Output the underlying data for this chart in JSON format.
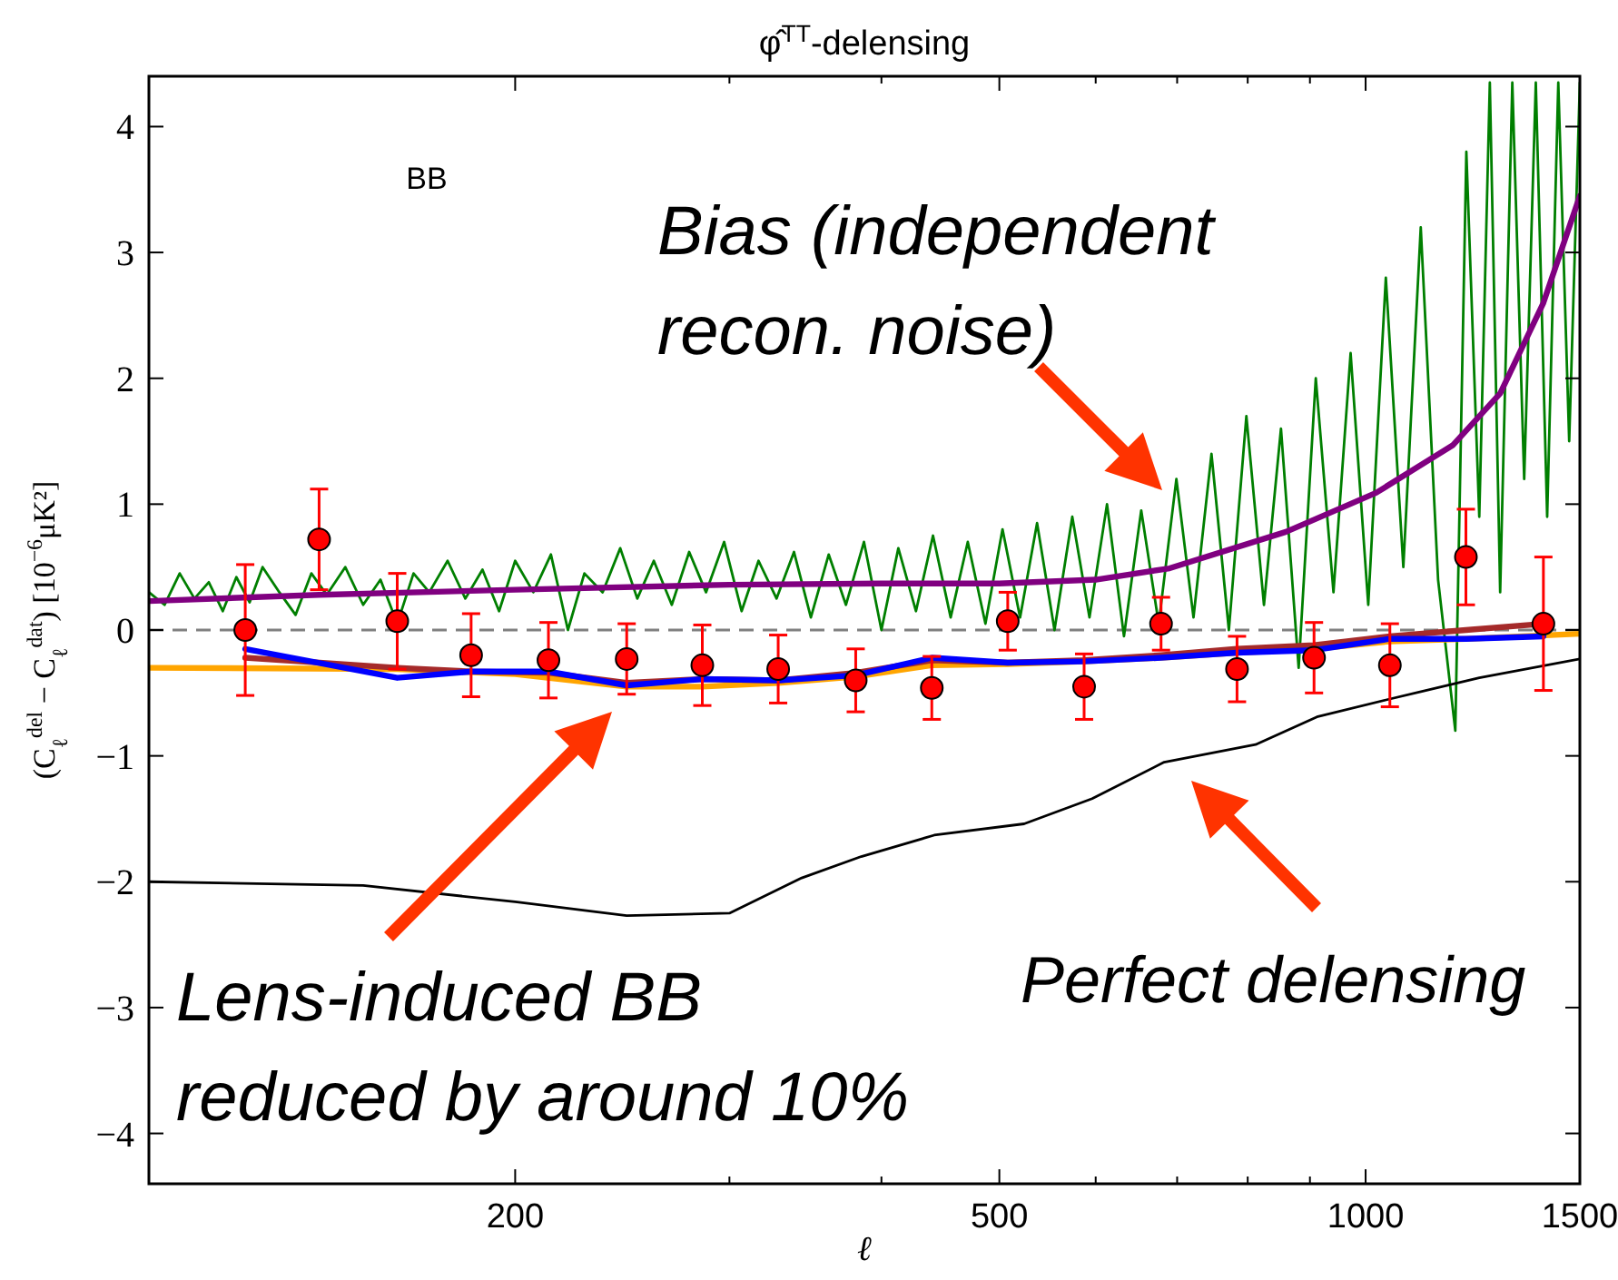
{
  "chart_data": {
    "type": "line",
    "title": "φ̂$^{TT}$-delensing",
    "xlabel": "ℓ",
    "ylabel": "(C$_{ℓ}$$^{del}$ − C$_{ℓ}$$^{dat}$) [10$^{−6}$μK²]",
    "log": "x",
    "xlim": [
      100,
      1500
    ],
    "ylim": [
      -4.4,
      4.4
    ],
    "xticks": [
      200,
      {
        "value": 300,
        "label": null
      },
      {
        "value": 400,
        "label": null
      },
      500,
      {
        "value": 600,
        "label": null
      },
      {
        "value": 700,
        "label": null
      },
      {
        "value": 800,
        "label": null
      },
      {
        "value": 900,
        "label": null
      },
      1000,
      1500
    ],
    "yticks": [
      {
        "value": -4,
        "label": "−4"
      },
      {
        "value": -3,
        "label": "−3"
      },
      {
        "value": -2,
        "label": "−2"
      },
      {
        "value": -1,
        "label": "−1"
      },
      0,
      1,
      2,
      3,
      4
    ],
    "ref_lines": [
      {
        "axis": "y",
        "value": 0,
        "color": "#808080",
        "line_style": "dashed"
      }
    ],
    "annotations": [
      "BB",
      "Bias (independent recon. noise)",
      "Lens-induced BB reduced by around 10%",
      "Perfect delensing"
    ],
    "series": [
      {
        "color": "#007f00",
        "x": [
          100,
          103,
          106,
          109,
          112,
          115,
          118,
          121,
          124,
          128,
          132,
          136,
          140,
          145,
          150,
          155,
          160,
          165,
          170,
          176,
          182,
          188,
          194,
          200,
          207,
          214,
          221,
          228,
          236,
          244,
          252,
          260,
          269,
          278,
          287,
          297,
          307,
          317,
          328,
          339,
          350,
          362,
          374,
          387,
          400,
          413,
          427,
          441,
          456,
          471,
          487,
          503,
          520,
          537,
          555,
          574,
          593,
          613,
          633,
          654,
          676,
          699,
          722,
          747,
          772,
          798,
          825,
          852,
          881,
          910,
          941,
          972,
          1005,
          1039,
          1074,
          1110,
          1147,
          1185,
          1210,
          1240,
          1265,
          1290,
          1320,
          1350,
          1380,
          1410,
          1440,
          1470,
          1500
        ],
        "values": [
          0.3,
          0.2,
          0.45,
          0.25,
          0.38,
          0.15,
          0.42,
          0.22,
          0.5,
          0.3,
          0.12,
          0.45,
          0.28,
          0.5,
          0.2,
          0.4,
          0.05,
          0.45,
          0.3,
          0.55,
          0.25,
          0.48,
          0.15,
          0.55,
          0.3,
          0.6,
          0.0,
          0.45,
          0.3,
          0.65,
          0.25,
          0.55,
          0.2,
          0.62,
          0.3,
          0.7,
          0.15,
          0.55,
          0.25,
          0.62,
          0.1,
          0.6,
          0.2,
          0.7,
          0.0,
          0.65,
          0.15,
          0.75,
          0.1,
          0.7,
          0.05,
          0.8,
          0.1,
          0.85,
          0.0,
          0.9,
          0.1,
          1.0,
          -0.05,
          0.95,
          0.05,
          1.2,
          0.1,
          1.4,
          0.0,
          1.7,
          0.2,
          1.6,
          -0.3,
          2.0,
          0.3,
          2.2,
          0.2,
          2.8,
          0.5,
          3.2,
          0.4,
          -0.8,
          3.8,
          0.9,
          4.35,
          0.3,
          4.35,
          1.2,
          4.35,
          0.9,
          4.35,
          1.5,
          4.35
        ]
      },
      {
        "color": "#800080",
        "x": [
          100,
          138,
          200,
          300,
          400,
          500,
          600,
          690,
          860,
          1020,
          1180,
          1290,
          1400,
          1500
        ],
        "values": [
          0.23,
          0.28,
          0.32,
          0.36,
          0.37,
          0.37,
          0.4,
          0.49,
          0.78,
          1.09,
          1.47,
          1.88,
          2.6,
          3.45
        ]
      },
      {
        "color": "#000000",
        "x": [
          100,
          150,
          200,
          247,
          300,
          344,
          385,
          442,
          524,
          596,
          683,
          812,
          912,
          1045,
          1240,
          1500
        ],
        "values": [
          -2.0,
          -2.03,
          -2.16,
          -2.27,
          -2.25,
          -1.97,
          -1.8,
          -1.63,
          -1.54,
          -1.34,
          -1.05,
          -0.91,
          -0.69,
          -0.55,
          -0.38,
          -0.23
        ]
      },
      {
        "color": "#ffa500",
        "x": [
          100,
          160,
          200,
          247,
          285,
          329,
          381,
          440,
          508,
          587,
          679,
          784,
          907,
          1047,
          1209,
          1500
        ],
        "values": [
          -0.3,
          -0.31,
          -0.35,
          -0.45,
          -0.45,
          -0.42,
          -0.37,
          -0.28,
          -0.27,
          -0.25,
          -0.22,
          -0.18,
          -0.15,
          -0.09,
          -0.07,
          -0.03
        ]
      },
      {
        "color": "#a52a2a",
        "x": [
          120,
          160,
          184,
          213,
          247,
          285,
          329,
          381,
          440,
          508,
          587,
          679,
          784,
          907,
          1047,
          1209,
          1400
        ],
        "values": [
          -0.22,
          -0.3,
          -0.33,
          -0.34,
          -0.42,
          -0.39,
          -0.4,
          -0.34,
          -0.24,
          -0.26,
          -0.24,
          -0.2,
          -0.15,
          -0.12,
          -0.05,
          0.0,
          0.05
        ]
      },
      {
        "color": "#0000ff",
        "x": [
          120,
          160,
          184,
          213,
          247,
          285,
          329,
          381,
          440,
          508,
          587,
          679,
          784,
          907,
          1047,
          1209,
          1400
        ],
        "values": [
          -0.15,
          -0.38,
          -0.33,
          -0.33,
          -0.44,
          -0.39,
          -0.4,
          -0.36,
          -0.22,
          -0.26,
          -0.25,
          -0.22,
          -0.18,
          -0.16,
          -0.07,
          -0.07,
          -0.05
        ]
      },
      {
        "type": "scatter",
        "color": "#ff0000",
        "marker": "circle",
        "x": [
          120,
          138,
          160,
          184,
          213,
          247,
          285,
          329,
          381,
          440,
          508,
          587,
          679,
          784,
          907,
          1047,
          1209,
          1400
        ],
        "values": [
          0.0,
          0.72,
          0.07,
          -0.2,
          -0.24,
          -0.23,
          -0.28,
          -0.31,
          -0.4,
          -0.46,
          0.07,
          -0.45,
          0.05,
          -0.31,
          -0.22,
          -0.28,
          0.58,
          0.05
        ],
        "errors": [
          0.52,
          0.4,
          0.38,
          0.33,
          0.3,
          0.28,
          0.32,
          0.27,
          0.25,
          0.25,
          0.23,
          0.26,
          0.21,
          0.26,
          0.28,
          0.33,
          0.38,
          0.53
        ]
      }
    ]
  }
}
